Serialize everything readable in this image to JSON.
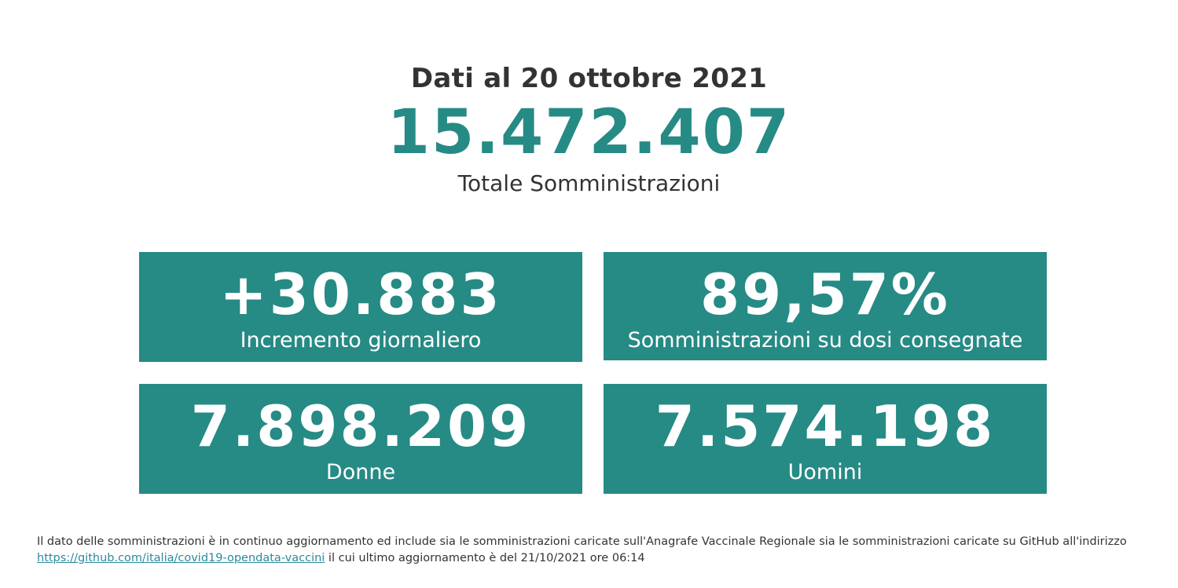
{
  "colors": {
    "accent": "#268a85",
    "text": "#333333",
    "link": "#2a8a9a",
    "card_text": "#ffffff"
  },
  "header": {
    "date_title": "Dati al 20 ottobre 2021",
    "total_value": "15.472.407",
    "total_label": "Totale Somministrazioni"
  },
  "cards": [
    {
      "value": "+30.883",
      "label": "Incremento giornaliero"
    },
    {
      "value": "89,57%",
      "label": "Somministrazioni su dosi consegnate"
    },
    {
      "value": "7.898.209",
      "label": "Donne"
    },
    {
      "value": "7.574.198",
      "label": "Uomini"
    }
  ],
  "footnote": {
    "line1": "Il dato delle somministrazioni è in continuo aggiornamento ed include sia le somministrazioni caricate sull'Anagrafe Vaccinale Regionale sia le somministrazioni caricate su GitHub all'indirizzo",
    "link_text": "https://github.com/italia/covid19-opendata-vaccini",
    "line2_rest": " il cui ultimo aggiornamento è del 21/10/2021 ore 06:14"
  }
}
